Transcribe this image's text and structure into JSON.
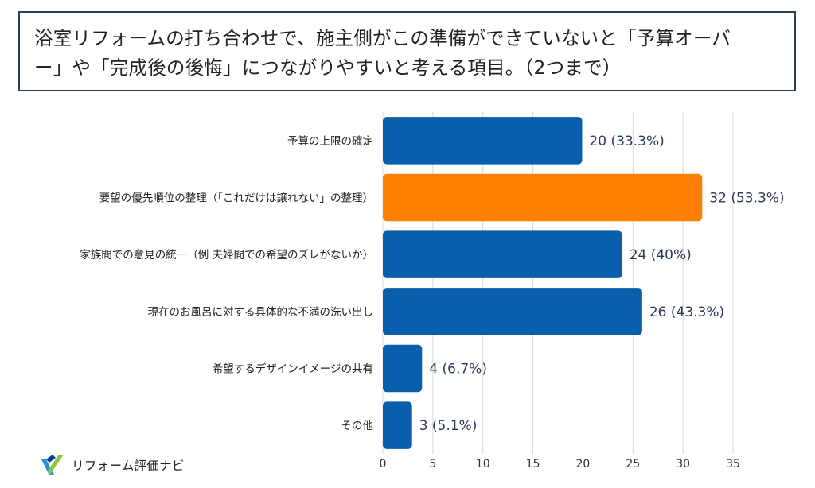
{
  "title": "浴室リフォームの打ち合わせで、施主側がこの準備ができていないと「予算オーバー」や「完成後の後悔」につながりやすいと考える項目。（2つまで）",
  "title_lines": [
    "浴室リフォームの打ち合わせで、施主側がこの準備ができていないと「予算オーバ",
    "ー」や「完成後の後悔」につながりやすいと考える項目。（2つまで）"
  ],
  "logo": {
    "text": "リフォーム評価ナビ"
  },
  "colors": {
    "default_bar": "#0a5fad",
    "highlight_bar": "#ff7f00",
    "grid": "#d9d9d9"
  },
  "chart_data": {
    "type": "bar",
    "orientation": "horizontal",
    "categories": [
      "予算の上限の確定",
      "要望の優先順位の整理（「これだけは譲れない」の整理）",
      "家族間での意見の統一（例 夫婦間での希望のズレがないか）",
      "現在のお風呂に対する具体的な不満の洗い出し",
      "希望するデザインイメージの共有",
      "その他"
    ],
    "values": [
      20,
      32,
      24,
      26,
      4,
      3
    ],
    "value_labels": [
      "20 (33.3%)",
      "32 (53.3%)",
      "24 (40%)",
      "26 (43.3%)",
      "4 (6.7%)",
      "3 (5.1%)"
    ],
    "highlight_index": 1,
    "xlim": [
      0,
      35
    ],
    "xticks": [
      0,
      5,
      10,
      15,
      20,
      25,
      30,
      35
    ],
    "grid": true,
    "legend": "none"
  }
}
